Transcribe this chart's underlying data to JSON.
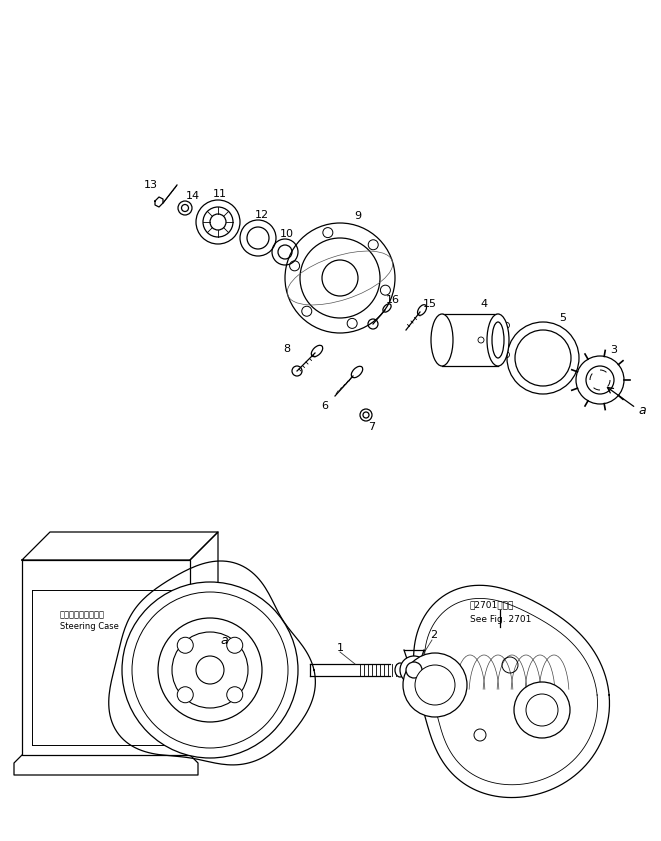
{
  "background_color": "#ffffff",
  "line_color": "#000000",
  "fig_width": 6.61,
  "fig_height": 8.41,
  "dpi": 100,
  "steering_case_label_jp": "ステアリングケース",
  "steering_case_label_en": "Steering Case",
  "see_fig_jp": "第2701図参照",
  "see_fig_en": "See Fig. 2701"
}
